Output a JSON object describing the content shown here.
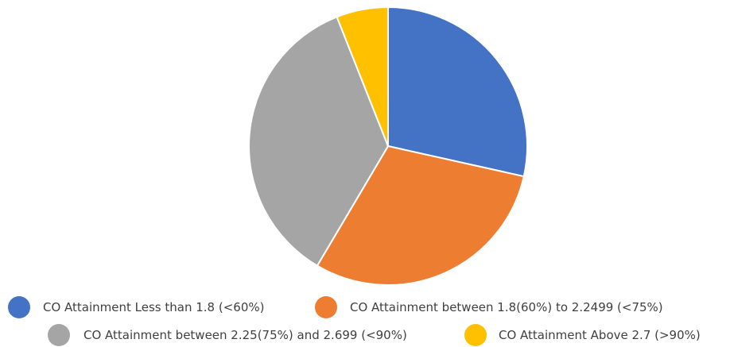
{
  "chart_data": {
    "type": "pie",
    "title": "",
    "start_angle_deg": 0,
    "direction": "clockwise",
    "categories": [
      "CO Attainment Less than 1.8 (<60%)",
      "CO Attainment between  1.8(60%) to 2.2499 (<75%)",
      "CO Attainment between  2.25(75%) and 2.699 (<90%)",
      "CO Attainment Above 2.7 (>90%)"
    ],
    "values": [
      28.5,
      30.0,
      35.5,
      6.0
    ],
    "colors": [
      "#4472C4",
      "#ED7D31",
      "#A5A5A5",
      "#FFC000"
    ],
    "legend_position": "bottom"
  }
}
